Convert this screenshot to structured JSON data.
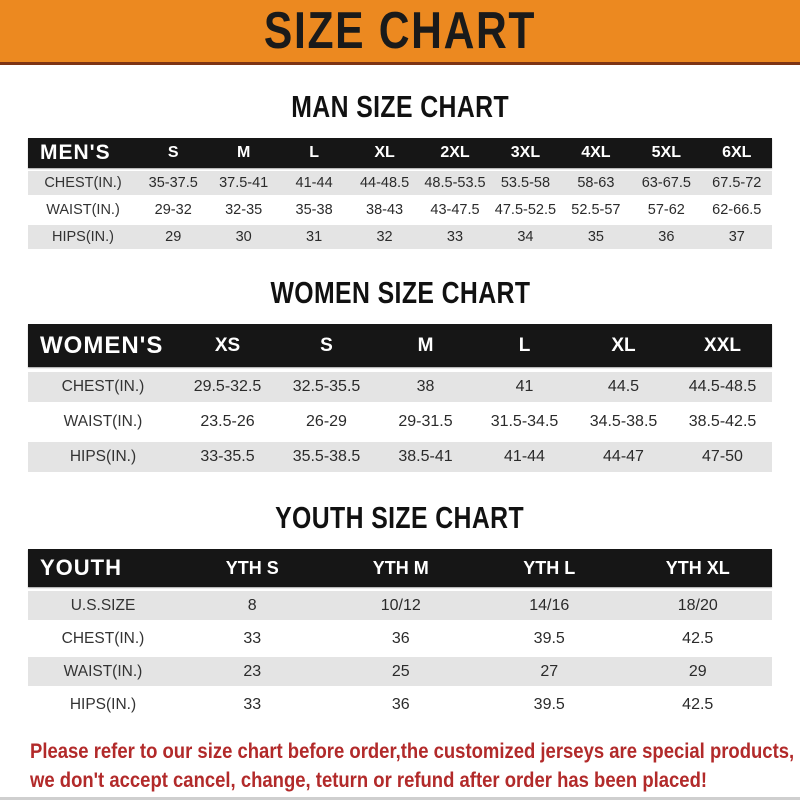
{
  "banner": {
    "title": "SIZE CHART",
    "bg_color": "#EC8920",
    "text_color": "#1A1A1A"
  },
  "sections": [
    {
      "id": "mens",
      "title": "MAN SIZE CHART",
      "header_label": "MEN'S",
      "columns": [
        "S",
        "M",
        "L",
        "XL",
        "2XL",
        "3XL",
        "4XL",
        "5XL",
        "6XL"
      ],
      "rows": [
        {
          "label": "CHEST(IN.)",
          "values": [
            "35-37.5",
            "37.5-41",
            "41-44",
            "44-48.5",
            "48.5-53.5",
            "53.5-58",
            "58-63",
            "63-67.5",
            "67.5-72"
          ]
        },
        {
          "label": "WAIST(IN.)",
          "values": [
            "29-32",
            "32-35",
            "35-38",
            "38-43",
            "43-47.5",
            "47.5-52.5",
            "52.5-57",
            "57-62",
            "62-66.5"
          ]
        },
        {
          "label": "HIPS(IN.)",
          "values": [
            "29",
            "30",
            "31",
            "32",
            "33",
            "34",
            "35",
            "36",
            "37"
          ]
        }
      ]
    },
    {
      "id": "womens",
      "title": "WOMEN SIZE CHART",
      "header_label": "WOMEN'S",
      "columns": [
        "XS",
        "S",
        "M",
        "L",
        "XL",
        "XXL"
      ],
      "rows": [
        {
          "label": "CHEST(IN.)",
          "values": [
            "29.5-32.5",
            "32.5-35.5",
            "38",
            "41",
            "44.5",
            "44.5-48.5"
          ]
        },
        {
          "label": "WAIST(IN.)",
          "values": [
            "23.5-26",
            "26-29",
            "29-31.5",
            "31.5-34.5",
            "34.5-38.5",
            "38.5-42.5"
          ]
        },
        {
          "label": "HIPS(IN.)",
          "values": [
            "33-35.5",
            "35.5-38.5",
            "38.5-41",
            "41-44",
            "44-47",
            "47-50"
          ]
        }
      ]
    },
    {
      "id": "youth",
      "title": "YOUTH SIZE CHART",
      "header_label": "YOUTH",
      "columns": [
        "YTH S",
        "YTH M",
        "YTH L",
        "YTH XL"
      ],
      "rows": [
        {
          "label": "U.S.SIZE",
          "values": [
            "8",
            "10/12",
            "14/16",
            "18/20"
          ]
        },
        {
          "label": "CHEST(IN.)",
          "values": [
            "33",
            "36",
            "39.5",
            "42.5"
          ]
        },
        {
          "label": "WAIST(IN.)",
          "values": [
            "23",
            "25",
            "27",
            "29"
          ]
        },
        {
          "label": "HIPS(IN.)",
          "values": [
            "33",
            "36",
            "39.5",
            "42.5"
          ]
        }
      ]
    }
  ],
  "disclaimer": {
    "line1": "Please refer to our size chart before order,the customized jerseys are special products,",
    "line2": "we don't accept cancel, change, teturn or refund after order has been placed!",
    "color": "#B22A2A"
  },
  "colors": {
    "banner_orange": "#EC8920",
    "banner_border": "#7D3414",
    "band_black": "#161616",
    "row_gray": "#E4E4E4",
    "text_dark": "#2B2B2B"
  }
}
